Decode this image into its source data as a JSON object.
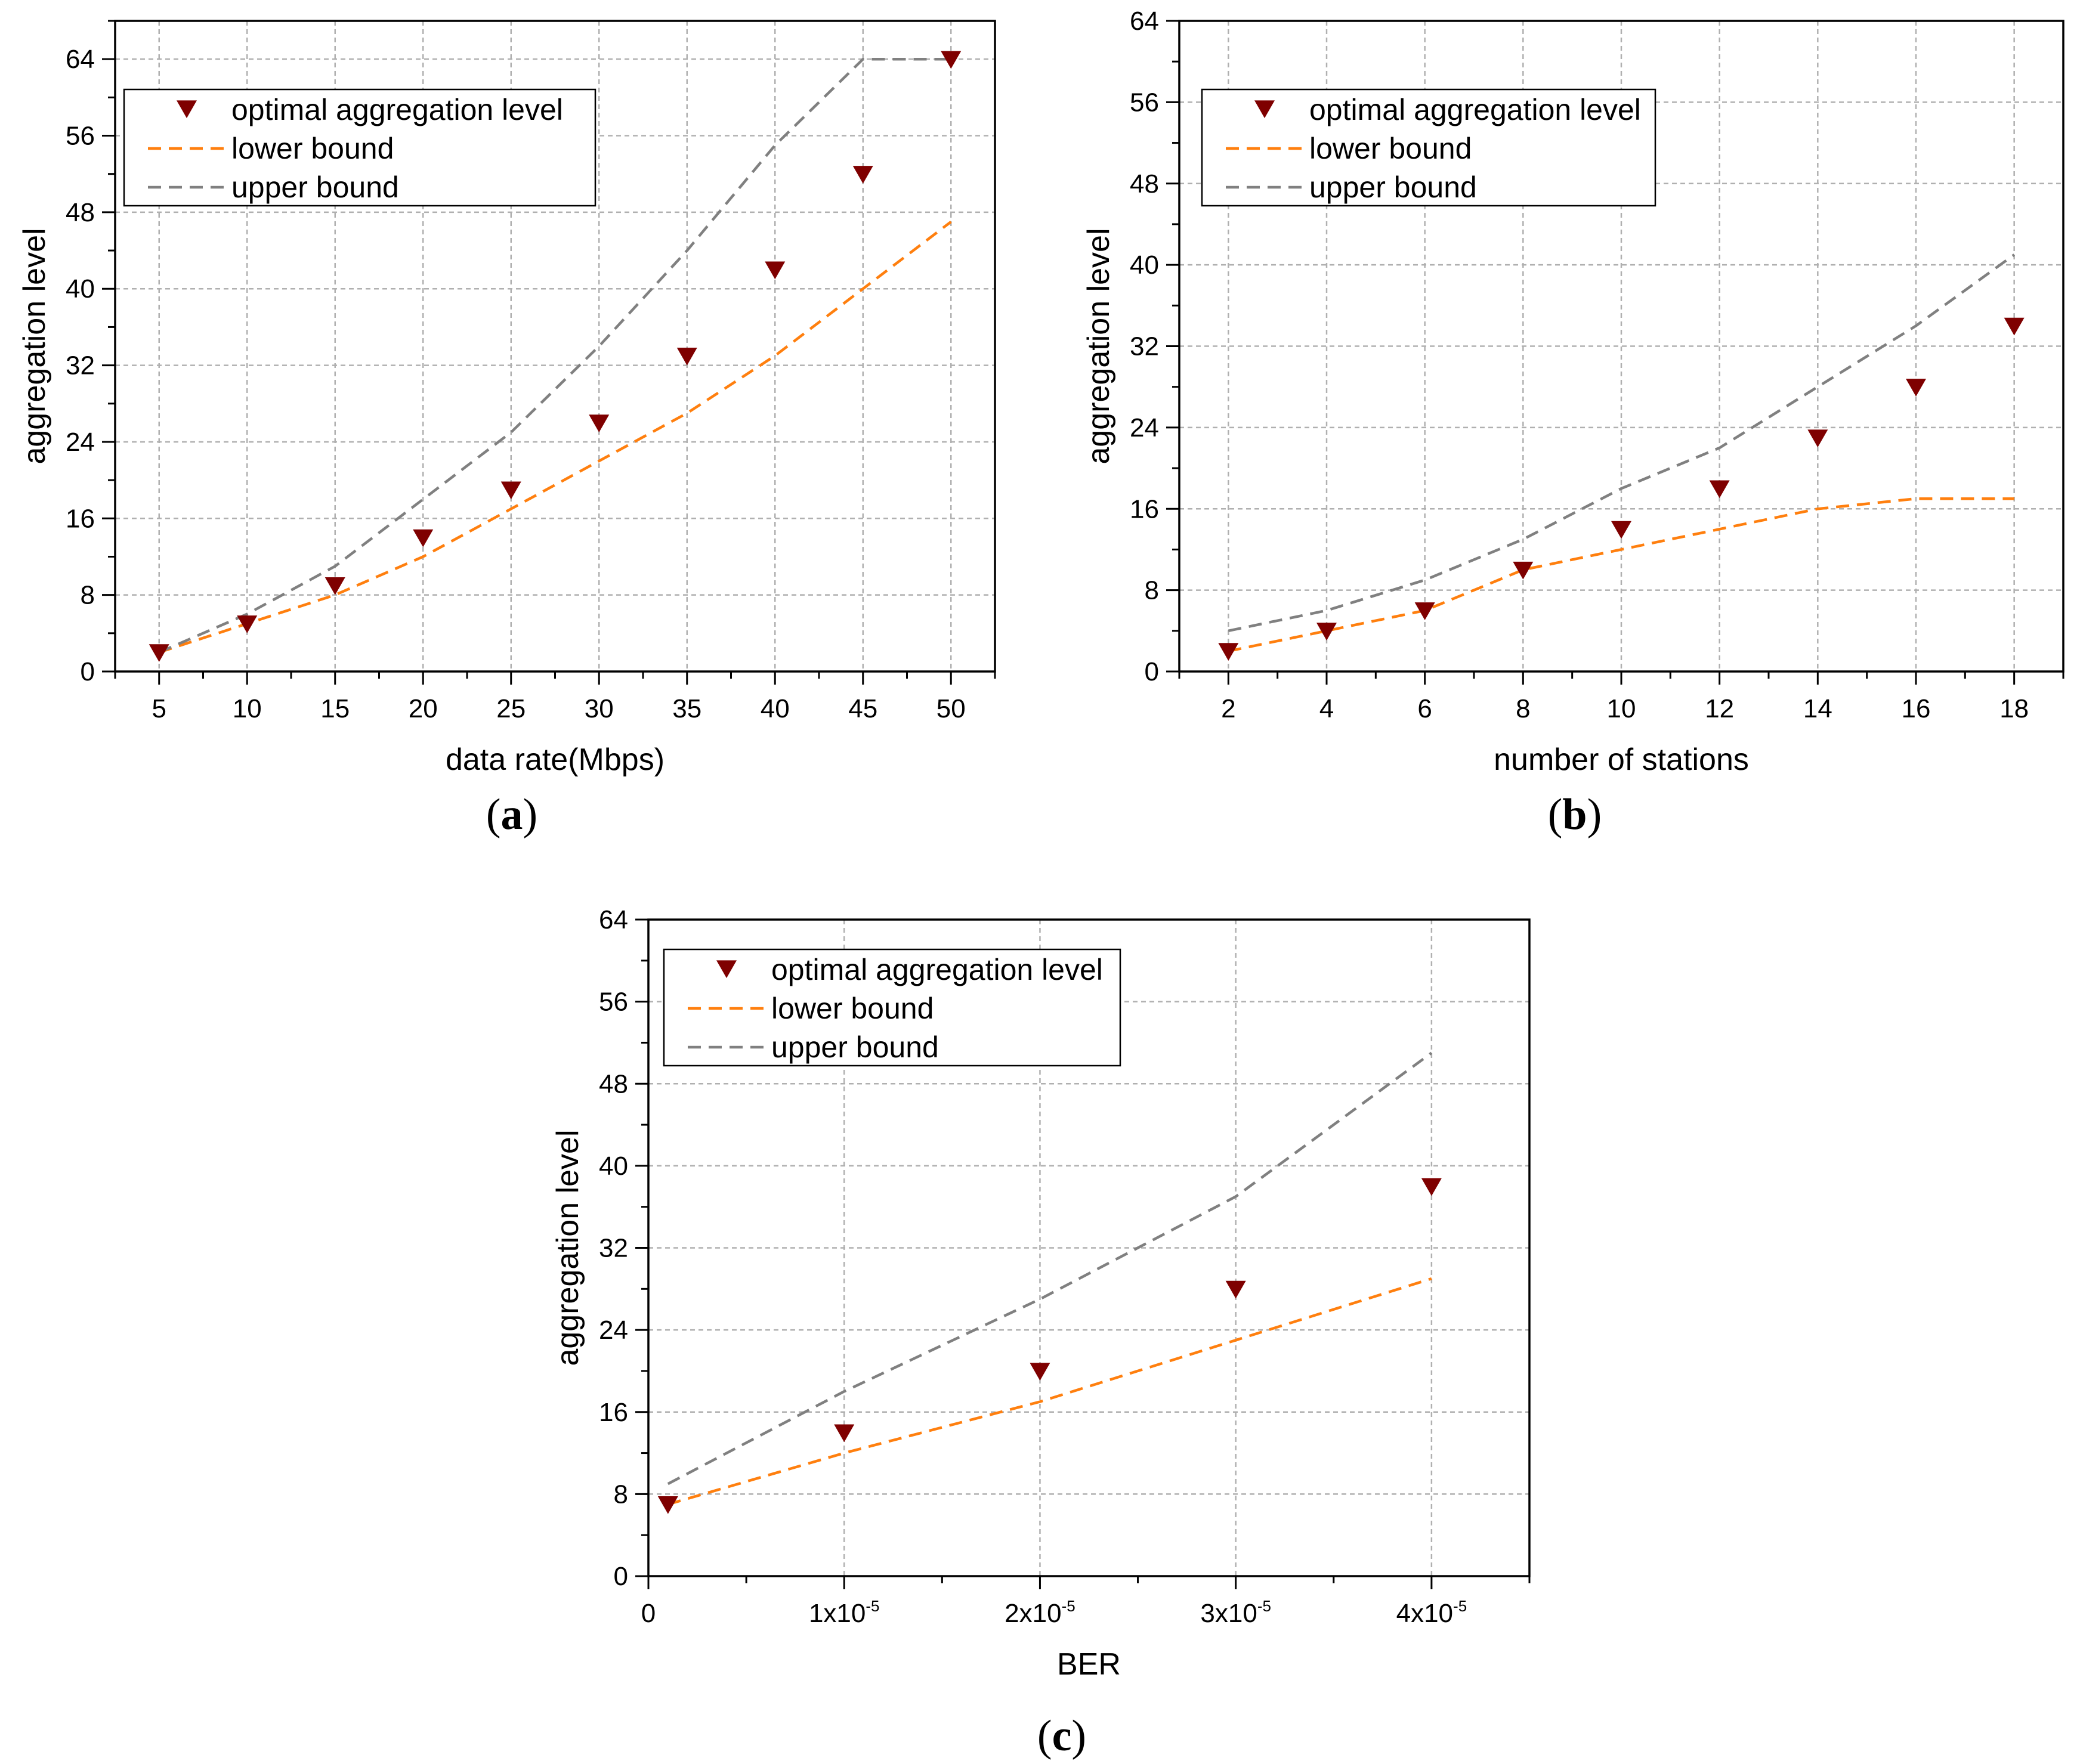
{
  "colors": {
    "optimal": "#7f0000",
    "lower": "#ff7f0e",
    "upper": "#808080",
    "grid": "#b0b0b0",
    "axis": "#000000"
  },
  "chart_data": [
    {
      "id": "a",
      "type": "line",
      "caption": {
        "open": "(",
        "letter": "a",
        "close": ")"
      },
      "title": "",
      "xlabel": "data rate(Mbps)",
      "ylabel": "aggregation level",
      "xlim": [
        2.5,
        52.5
      ],
      "ylim": [
        0,
        68
      ],
      "xticks": [
        5,
        10,
        15,
        20,
        25,
        30,
        35,
        40,
        45,
        50
      ],
      "xtick_labels": [
        "5",
        "10",
        "15",
        "20",
        "25",
        "30",
        "35",
        "40",
        "45",
        "50"
      ],
      "yticks": [
        0,
        8,
        16,
        24,
        32,
        40,
        48,
        56,
        64
      ],
      "ytick_labels": [
        "0",
        "8",
        "16",
        "24",
        "32",
        "40",
        "48",
        "56",
        "64"
      ],
      "grid": true,
      "legend_position": "top-left",
      "series": [
        {
          "name": "optimal aggregation level",
          "style": "marker-down-triangle",
          "x": [
            5,
            10,
            15,
            20,
            25,
            30,
            35,
            40,
            45,
            50
          ],
          "values": [
            2,
            5,
            9,
            14,
            19,
            26,
            33,
            42,
            52,
            64
          ]
        },
        {
          "name": "lower bound",
          "style": "dashed-orange",
          "x": [
            5,
            10,
            15,
            20,
            25,
            30,
            35,
            40,
            45,
            50
          ],
          "values": [
            2,
            5,
            8,
            12,
            17,
            22,
            27,
            33,
            40,
            47
          ]
        },
        {
          "name": "upper bound",
          "style": "dashed-gray",
          "x": [
            5,
            10,
            15,
            20,
            25,
            30,
            35,
            40,
            45,
            50
          ],
          "values": [
            2,
            6,
            11,
            18,
            25,
            34,
            44,
            55,
            64,
            64
          ]
        }
      ]
    },
    {
      "id": "b",
      "type": "line",
      "caption": {
        "open": "(",
        "letter": "b",
        "close": ")"
      },
      "title": "",
      "xlabel": "number of stations",
      "ylabel": "aggregation level",
      "xlim": [
        1,
        19
      ],
      "ylim": [
        0,
        64
      ],
      "xticks": [
        2,
        4,
        6,
        8,
        10,
        12,
        14,
        16,
        18
      ],
      "xtick_labels": [
        "2",
        "4",
        "6",
        "8",
        "10",
        "12",
        "14",
        "16",
        "18"
      ],
      "yticks": [
        0,
        8,
        16,
        24,
        32,
        40,
        48,
        56,
        64
      ],
      "ytick_labels": [
        "0",
        "8",
        "16",
        "24",
        "32",
        "40",
        "48",
        "56",
        "64"
      ],
      "grid": true,
      "legend_position": "top-left",
      "series": [
        {
          "name": "optimal aggregation level",
          "style": "marker-down-triangle",
          "x": [
            2,
            4,
            6,
            8,
            10,
            12,
            14,
            16,
            18
          ],
          "values": [
            2,
            4,
            6,
            10,
            14,
            18,
            23,
            28,
            34
          ]
        },
        {
          "name": "lower bound",
          "style": "dashed-orange",
          "x": [
            2,
            4,
            6,
            8,
            10,
            12,
            14,
            16,
            18
          ],
          "values": [
            2,
            4,
            6,
            10,
            12,
            14,
            16,
            17,
            17
          ]
        },
        {
          "name": "upper bound",
          "style": "dashed-gray",
          "x": [
            2,
            4,
            6,
            8,
            10,
            12,
            14,
            16,
            18
          ],
          "values": [
            4,
            6,
            9,
            13,
            18,
            22,
            28,
            34,
            41
          ]
        }
      ]
    },
    {
      "id": "c",
      "type": "line",
      "caption": {
        "open": "(",
        "letter": "c",
        "close": ")"
      },
      "title": "",
      "xlabel": "BER",
      "ylabel": "aggregation level",
      "xlim": [
        0,
        4.5
      ],
      "ylim": [
        0,
        64
      ],
      "xticks": [
        0,
        1,
        2,
        3,
        4
      ],
      "xtick_labels": [
        {
          "base": "0",
          "exp": ""
        },
        {
          "base": "1x10",
          "exp": "-5"
        },
        {
          "base": "2x10",
          "exp": "-5"
        },
        {
          "base": "3x10",
          "exp": "-5"
        },
        {
          "base": "4x10",
          "exp": "-5"
        }
      ],
      "yticks": [
        0,
        8,
        16,
        24,
        32,
        40,
        48,
        56,
        64
      ],
      "ytick_labels": [
        "0",
        "8",
        "16",
        "24",
        "32",
        "40",
        "48",
        "56",
        "64"
      ],
      "grid": true,
      "legend_position": "top-left",
      "series": [
        {
          "name": "optimal aggregation level",
          "style": "marker-down-triangle",
          "x": [
            0.1,
            1,
            2,
            3,
            4
          ],
          "values": [
            7,
            14,
            20,
            28,
            38
          ]
        },
        {
          "name": "lower bound",
          "style": "dashed-orange",
          "x": [
            0.1,
            1,
            2,
            3,
            4
          ],
          "values": [
            7,
            12,
            17,
            23,
            29
          ]
        },
        {
          "name": "upper bound",
          "style": "dashed-gray",
          "x": [
            0.1,
            1,
            2,
            3,
            4
          ],
          "values": [
            9,
            18,
            27,
            37,
            51
          ]
        }
      ]
    }
  ]
}
